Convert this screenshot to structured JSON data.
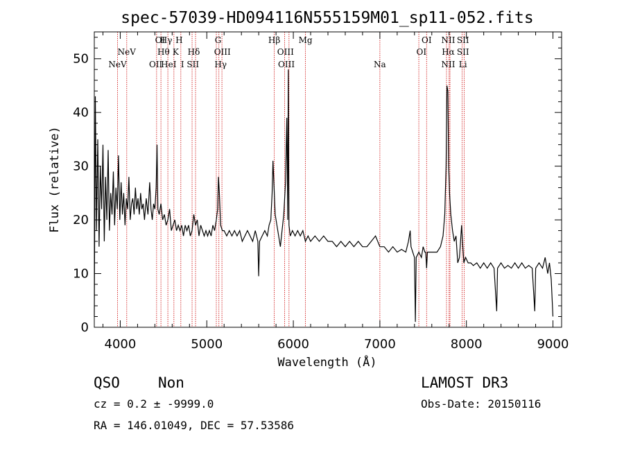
{
  "chart_data": {
    "type": "line",
    "title": "spec-57039-HD094116N555159M01_sp11-052.fits",
    "xlabel": "Wavelength (Å)",
    "ylabel": "Flux (relative)",
    "xlim": [
      3700,
      9100
    ],
    "ylim": [
      0,
      55
    ],
    "xticks": [
      4000,
      5000,
      6000,
      7000,
      8000,
      9000
    ],
    "yticks": [
      0,
      10,
      20,
      30,
      40,
      50
    ],
    "grid": false,
    "series": [
      {
        "points": [
          [
            3700,
            2
          ],
          [
            3712,
            43
          ],
          [
            3725,
            18
          ],
          [
            3740,
            35
          ],
          [
            3755,
            15
          ],
          [
            3770,
            30
          ],
          [
            3785,
            22
          ],
          [
            3800,
            34
          ],
          [
            3815,
            16
          ],
          [
            3830,
            28
          ],
          [
            3845,
            20
          ],
          [
            3860,
            33
          ],
          [
            3875,
            18
          ],
          [
            3890,
            25
          ],
          [
            3905,
            21
          ],
          [
            3920,
            29
          ],
          [
            3935,
            19
          ],
          [
            3950,
            26
          ],
          [
            3965,
            22
          ],
          [
            3980,
            32
          ],
          [
            3995,
            20
          ],
          [
            4010,
            27
          ],
          [
            4025,
            21
          ],
          [
            4040,
            25
          ],
          [
            4055,
            19
          ],
          [
            4070,
            24
          ],
          [
            4085,
            22
          ],
          [
            4100,
            28
          ],
          [
            4115,
            20
          ],
          [
            4130,
            23
          ],
          [
            4145,
            24
          ],
          [
            4160,
            21
          ],
          [
            4175,
            26
          ],
          [
            4190,
            22
          ],
          [
            4205,
            24
          ],
          [
            4220,
            21
          ],
          [
            4235,
            25
          ],
          [
            4250,
            22
          ],
          [
            4265,
            23
          ],
          [
            4280,
            20
          ],
          [
            4300,
            24
          ],
          [
            4320,
            21
          ],
          [
            4340,
            27
          ],
          [
            4355,
            22
          ],
          [
            4370,
            20
          ],
          [
            4385,
            23
          ],
          [
            4400,
            22
          ],
          [
            4415,
            26
          ],
          [
            4425,
            34
          ],
          [
            4435,
            22
          ],
          [
            4450,
            21
          ],
          [
            4470,
            23
          ],
          [
            4490,
            20
          ],
          [
            4510,
            21
          ],
          [
            4530,
            19
          ],
          [
            4550,
            20
          ],
          [
            4570,
            22
          ],
          [
            4590,
            18
          ],
          [
            4610,
            19
          ],
          [
            4630,
            20
          ],
          [
            4650,
            18
          ],
          [
            4670,
            19
          ],
          [
            4690,
            18
          ],
          [
            4710,
            19
          ],
          [
            4730,
            17
          ],
          [
            4750,
            19
          ],
          [
            4770,
            18
          ],
          [
            4790,
            19
          ],
          [
            4810,
            17
          ],
          [
            4830,
            18
          ],
          [
            4850,
            21
          ],
          [
            4870,
            19
          ],
          [
            4890,
            20
          ],
          [
            4910,
            17
          ],
          [
            4930,
            19
          ],
          [
            4950,
            18
          ],
          [
            4970,
            17
          ],
          [
            4990,
            18
          ],
          [
            5010,
            17
          ],
          [
            5030,
            18
          ],
          [
            5050,
            17
          ],
          [
            5070,
            19
          ],
          [
            5090,
            18
          ],
          [
            5110,
            20
          ],
          [
            5125,
            22
          ],
          [
            5135,
            28
          ],
          [
            5145,
            25
          ],
          [
            5160,
            19
          ],
          [
            5180,
            18
          ],
          [
            5200,
            18
          ],
          [
            5230,
            17
          ],
          [
            5260,
            18
          ],
          [
            5290,
            17
          ],
          [
            5320,
            18
          ],
          [
            5350,
            17
          ],
          [
            5380,
            18
          ],
          [
            5410,
            16
          ],
          [
            5440,
            17
          ],
          [
            5470,
            18
          ],
          [
            5500,
            17
          ],
          [
            5530,
            16
          ],
          [
            5560,
            18
          ],
          [
            5590,
            16
          ],
          [
            5600,
            9.5
          ],
          [
            5610,
            16
          ],
          [
            5640,
            17
          ],
          [
            5670,
            18
          ],
          [
            5700,
            17
          ],
          [
            5720,
            19
          ],
          [
            5740,
            20
          ],
          [
            5755,
            25
          ],
          [
            5765,
            31
          ],
          [
            5775,
            27
          ],
          [
            5790,
            21
          ],
          [
            5810,
            19
          ],
          [
            5830,
            17
          ],
          [
            5850,
            15
          ],
          [
            5870,
            18
          ],
          [
            5890,
            21
          ],
          [
            5910,
            27
          ],
          [
            5925,
            39
          ],
          [
            5935,
            20
          ],
          [
            5942,
            48
          ],
          [
            5950,
            19
          ],
          [
            5965,
            17
          ],
          [
            5990,
            18
          ],
          [
            6020,
            17
          ],
          [
            6050,
            18
          ],
          [
            6080,
            17
          ],
          [
            6110,
            18
          ],
          [
            6140,
            16
          ],
          [
            6170,
            17
          ],
          [
            6200,
            16
          ],
          [
            6250,
            17
          ],
          [
            6300,
            16
          ],
          [
            6350,
            17
          ],
          [
            6400,
            16
          ],
          [
            6450,
            16
          ],
          [
            6500,
            15
          ],
          [
            6550,
            16
          ],
          [
            6600,
            15
          ],
          [
            6650,
            16
          ],
          [
            6700,
            15
          ],
          [
            6750,
            16
          ],
          [
            6800,
            15
          ],
          [
            6850,
            15
          ],
          [
            6900,
            16
          ],
          [
            6950,
            17
          ],
          [
            7000,
            15
          ],
          [
            7050,
            15
          ],
          [
            7100,
            14
          ],
          [
            7150,
            15
          ],
          [
            7200,
            14
          ],
          [
            7250,
            14.5
          ],
          [
            7300,
            14
          ],
          [
            7330,
            16
          ],
          [
            7350,
            18
          ],
          [
            7360,
            15
          ],
          [
            7380,
            14
          ],
          [
            7400,
            13
          ],
          [
            7410,
            1
          ],
          [
            7420,
            13
          ],
          [
            7450,
            14
          ],
          [
            7480,
            13
          ],
          [
            7500,
            15
          ],
          [
            7520,
            14
          ],
          [
            7530,
            14
          ],
          [
            7540,
            11
          ],
          [
            7550,
            14
          ],
          [
            7580,
            14
          ],
          [
            7620,
            14
          ],
          [
            7660,
            14
          ],
          [
            7700,
            15
          ],
          [
            7730,
            17
          ],
          [
            7750,
            21
          ],
          [
            7765,
            30
          ],
          [
            7775,
            45
          ],
          [
            7785,
            44
          ],
          [
            7795,
            30
          ],
          [
            7805,
            25
          ],
          [
            7820,
            21
          ],
          [
            7840,
            18
          ],
          [
            7860,
            16
          ],
          [
            7880,
            17
          ],
          [
            7900,
            12
          ],
          [
            7920,
            13
          ],
          [
            7945,
            19
          ],
          [
            7955,
            16
          ],
          [
            7970,
            12
          ],
          [
            7990,
            13
          ],
          [
            8020,
            12
          ],
          [
            8050,
            12
          ],
          [
            8080,
            11.5
          ],
          [
            8120,
            12
          ],
          [
            8160,
            11
          ],
          [
            8200,
            12
          ],
          [
            8240,
            11
          ],
          [
            8280,
            12
          ],
          [
            8320,
            11
          ],
          [
            8350,
            3
          ],
          [
            8360,
            11
          ],
          [
            8400,
            12
          ],
          [
            8440,
            11
          ],
          [
            8480,
            11.5
          ],
          [
            8520,
            11
          ],
          [
            8560,
            12
          ],
          [
            8600,
            11
          ],
          [
            8640,
            12
          ],
          [
            8680,
            11
          ],
          [
            8720,
            11.5
          ],
          [
            8760,
            11
          ],
          [
            8790,
            3
          ],
          [
            8800,
            11
          ],
          [
            8840,
            12
          ],
          [
            8880,
            11
          ],
          [
            8910,
            13
          ],
          [
            8940,
            10
          ],
          [
            8960,
            12
          ],
          [
            8980,
            9
          ],
          [
            9000,
            2
          ]
        ]
      }
    ],
    "line_markers": [
      {
        "wl": 3969,
        "label": "NeV",
        "row": 3
      },
      {
        "wl": 4075,
        "label": "NeV",
        "row": 2
      },
      {
        "wl": 4410,
        "label": "OII",
        "row": 3
      },
      {
        "wl": 4460,
        "label": "OI",
        "row": 1
      },
      {
        "wl": 4530,
        "label": "Hγ",
        "row": 1
      },
      {
        "wl": 4500,
        "label": "Hθ",
        "row": 2
      },
      {
        "wl": 4560,
        "label": "HeI",
        "row": 3
      },
      {
        "wl": 4680,
        "label": "H",
        "row": 1
      },
      {
        "wl": 4640,
        "label": "K",
        "row": 2
      },
      {
        "wl": 4720,
        "label": "I",
        "row": 3
      },
      {
        "wl": 4850,
        "label": "Hδ",
        "row": 2
      },
      {
        "wl": 4840,
        "label": "SII",
        "row": 3
      },
      {
        "wl": 5130,
        "label": "G",
        "row": 1
      },
      {
        "wl": 5180,
        "label": "OIII",
        "row": 2
      },
      {
        "wl": 5160,
        "label": "Hγ",
        "row": 3
      },
      {
        "wl": 5780,
        "label": "Hβ",
        "row": 1
      },
      {
        "wl": 5910,
        "label": "OIII",
        "row": 2
      },
      {
        "wl": 5920,
        "label": "OIII",
        "row": 3
      },
      {
        "wl": 6140,
        "label": "Mg",
        "row": 1
      },
      {
        "wl": 7000,
        "label": "Na",
        "row": 3
      },
      {
        "wl": 7540,
        "label": "OI",
        "row": 1
      },
      {
        "wl": 7480,
        "label": "OI",
        "row": 2
      },
      {
        "wl": 7790,
        "label": "NII",
        "row": 1
      },
      {
        "wl": 7790,
        "label": "Hα",
        "row": 2
      },
      {
        "wl": 7790,
        "label": "NII",
        "row": 3
      },
      {
        "wl": 7960,
        "label": "SII",
        "row": 1
      },
      {
        "wl": 7960,
        "label": "SII",
        "row": 2
      },
      {
        "wl": 7960,
        "label": "Li",
        "row": 3
      }
    ],
    "marker_lines_wl": [
      3969,
      4075,
      4420,
      4470,
      4550,
      4620,
      4700,
      4830,
      4870,
      5110,
      5140,
      5175,
      5780,
      5900,
      5950,
      6140,
      7000,
      7450,
      7540,
      7770,
      7800,
      7810,
      7950,
      7975
    ]
  },
  "info": {
    "class": "QSO",
    "subclass": "Non",
    "survey": "LAMOST DR3",
    "cz": "cz = 0.2 ± -9999.0",
    "obs_date": "Obs-Date: 20150116",
    "radec": "RA = 146.01049, DEC =  57.53586"
  },
  "colors": {
    "spectrum": "#000000",
    "markers": "#cc0000",
    "axes": "#000000"
  }
}
